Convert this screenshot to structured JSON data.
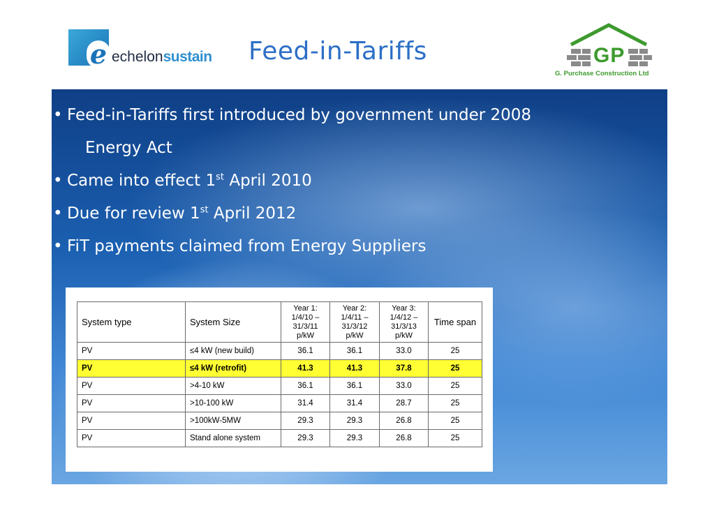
{
  "header": {
    "logo_left": {
      "prefix": "echelon",
      "suffix": "sustain"
    },
    "title": "Feed-in-Tariffs",
    "logo_right": {
      "letters": "GP",
      "company": "G. Purchase Construction Ltd"
    }
  },
  "bullets": [
    {
      "text": "Feed-in-Tariffs first introduced by government under 2008",
      "continuation": "Energy Act"
    },
    {
      "before": "Came into effect 1",
      "sup": "st",
      "after": " April 2010"
    },
    {
      "before": "Due for review 1",
      "sup": "st",
      "after": " April 2012"
    },
    {
      "text": "FiT payments claimed from Energy Suppliers"
    }
  ],
  "table": {
    "headers": {
      "system_type": "System type",
      "system_size": "System Size",
      "year1": [
        "Year 1:",
        "1/4/10 –",
        "31/3/11",
        "p/kW"
      ],
      "year2": [
        "Year 2:",
        "1/4/11 –",
        "31/3/12",
        "p/kW"
      ],
      "year3": [
        "Year 3:",
        "1/4/12 –",
        "31/3/13",
        "p/kW"
      ],
      "time_span": "Time span"
    },
    "rows": [
      {
        "type": "PV",
        "size": "≤4 kW (new build)",
        "y1": "36.1",
        "y2": "36.1",
        "y3": "33.0",
        "span": "25",
        "highlight": false
      },
      {
        "type": "PV",
        "size": "≤4 kW (retrofit)",
        "y1": "41.3",
        "y2": "41.3",
        "y3": "37.8",
        "span": "25",
        "highlight": true
      },
      {
        "type": "PV",
        "size": ">4-10 kW",
        "y1": "36.1",
        "y2": "36.1",
        "y3": "33.0",
        "span": "25",
        "highlight": false
      },
      {
        "type": "PV",
        "size": ">10-100 kW",
        "y1": "31.4",
        "y2": "31.4",
        "y3": "28.7",
        "span": "25",
        "highlight": false
      },
      {
        "type": "PV",
        "size": ">100kW-5MW",
        "y1": "29.3",
        "y2": "29.3",
        "y3": "26.8",
        "span": "25",
        "highlight": false
      },
      {
        "type": "PV",
        "size": "Stand alone system",
        "y1": "29.3",
        "y2": "29.3",
        "y3": "26.8",
        "span": "25",
        "highlight": false
      }
    ],
    "highlight_color": "#ffff33"
  },
  "colors": {
    "title": "#2c6fc6",
    "gp_green": "#3d9a2e",
    "gp_grey": "#8a8a8a",
    "echelon_blue": "#1b74b8",
    "sustain_blue": "#2e8fcf"
  }
}
